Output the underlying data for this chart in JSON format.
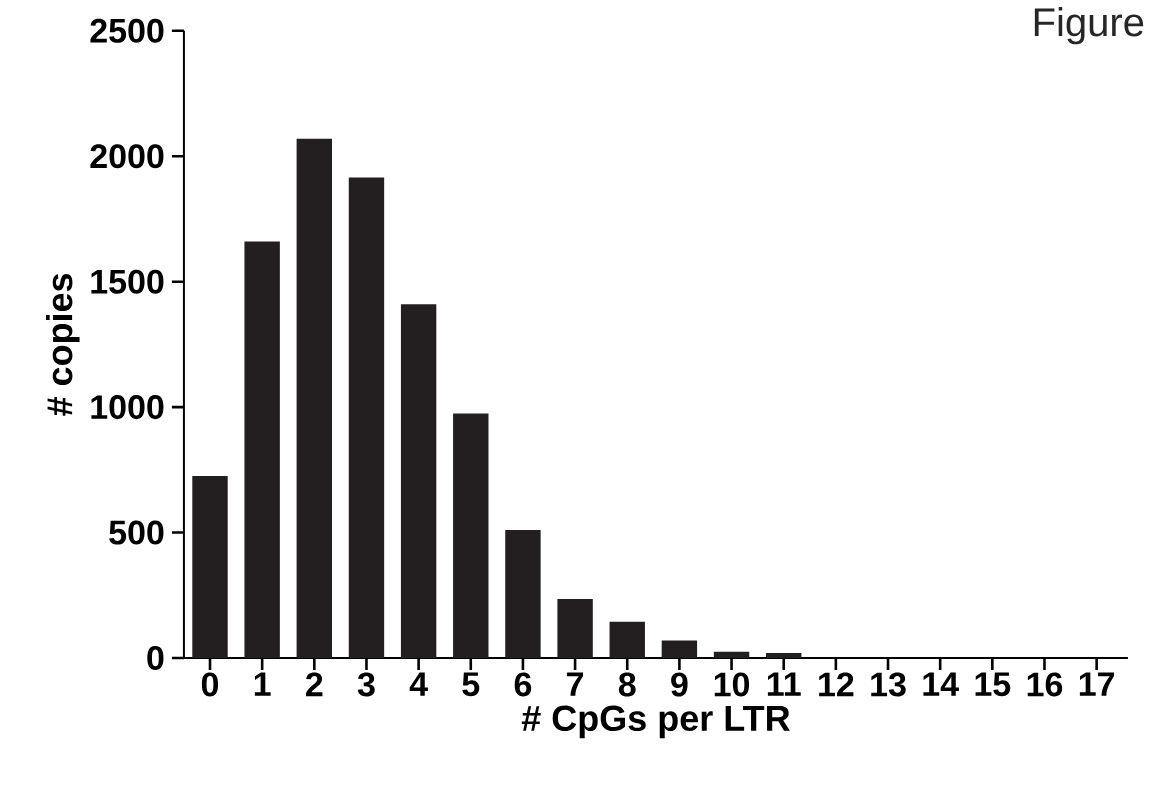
{
  "chart_data": {
    "type": "bar",
    "xlabel": "# CpGs per LTR",
    "ylabel": "# copies",
    "annotations": [
      "Figure"
    ],
    "categories": [
      "0",
      "1",
      "2",
      "3",
      "4",
      "5",
      "6",
      "7",
      "8",
      "9",
      "10",
      "11",
      "12",
      "13",
      "14",
      "15",
      "16",
      "17"
    ],
    "values": [
      725,
      1660,
      2070,
      1915,
      1410,
      975,
      510,
      235,
      145,
      70,
      25,
      20,
      0,
      0,
      0,
      0,
      0,
      0
    ],
    "color": "#231f20",
    "ylim": [
      0,
      2500
    ],
    "yticks": [
      0,
      500,
      1000,
      1500,
      2000,
      2500
    ]
  }
}
